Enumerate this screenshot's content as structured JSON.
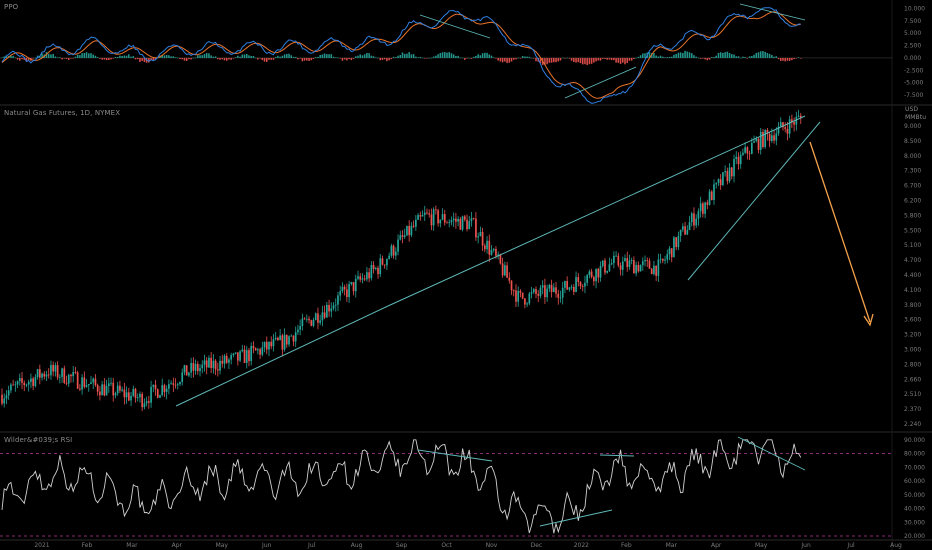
{
  "panes": {
    "ppo": {
      "title": "PPO",
      "ticks": [
        "10.000",
        "7.500",
        "5.000",
        "2.500",
        "0.000",
        "-2.500",
        "-5.000",
        "-7.500"
      ],
      "tick_values": [
        10,
        7.5,
        5,
        2.5,
        0,
        -2.5,
        -5,
        -7.5
      ]
    },
    "price": {
      "title": "Natural Gas Futures, 1D, NYMEX",
      "currency": "USD",
      "unit": "MMBtu",
      "ticks": [
        "9.000",
        "8.500",
        "8.000",
        "7.300",
        "6.700",
        "6.200",
        "5.800",
        "5.500",
        "5.100",
        "4.700",
        "4.400",
        "4.100",
        "3.800",
        "3.600",
        "3.200",
        "3.000",
        "2.800",
        "2.660",
        "2.510",
        "2.370",
        "2.240"
      ]
    },
    "rsi": {
      "title": "Wilder&#039;s RSI",
      "ticks": [
        "90.000",
        "80.000",
        "70.000",
        "60.000",
        "50.000",
        "40.000",
        "30.000",
        "20.000"
      ],
      "tick_values": [
        90,
        80,
        70,
        60,
        50,
        40,
        30,
        20
      ]
    }
  },
  "time_axis": [
    "2021",
    "Feb",
    "Mar",
    "Apr",
    "May",
    "Jun",
    "Jul",
    "Aug",
    "Sep",
    "Oct",
    "Nov",
    "Dec",
    "2022",
    "Feb",
    "Mar",
    "Apr",
    "May",
    "Jun",
    "Jul",
    "Aug"
  ],
  "colors": {
    "background": "#000000",
    "up_candle": "#26a69a",
    "down_candle": "#ef5350",
    "trendline": "#5fb7b7",
    "projection_arrow": "#f7a14a",
    "ppo_line": "#2f7fe0",
    "ppo_signal": "#e8732a",
    "rsi_line": "#d0d0d0",
    "rsi_level_line": "#b33a9a",
    "pane_divider": "#2a2a2a"
  },
  "chart_data": [
    {
      "type": "line",
      "pane": "PPO",
      "title": "PPO",
      "x": [
        "2021-01",
        "2021-02",
        "2021-03",
        "2021-04",
        "2021-05",
        "2021-06",
        "2021-07",
        "2021-08",
        "2021-09",
        "2021-10",
        "2021-11",
        "2021-12",
        "2022-01",
        "2022-02",
        "2022-03",
        "2022-04",
        "2022-05",
        "2022-06"
      ],
      "series": [
        {
          "name": "",
          "values": [
            -0.5,
            1.2,
            3.0,
            0.5,
            1.8,
            2.0,
            2.2,
            2.6,
            3.0,
            7.2,
            9.0,
            3.0,
            -6.5,
            -9.0,
            2.5,
            5.0,
            10.0,
            7.0
          ]
        },
        {
          "name": "",
          "values": [
            -0.3,
            0.8,
            2.5,
            0.8,
            1.6,
            1.9,
            2.1,
            2.4,
            2.8,
            6.5,
            8.5,
            3.5,
            -5.5,
            -8.0,
            1.5,
            4.5,
            9.0,
            7.5
          ]
        }
      ],
      "ylim": [
        -8.5,
        10.5
      ],
      "grid": false
    },
    {
      "type": "line",
      "pane": "price",
      "title": "Natural Gas Futures, 1D, NYMEX",
      "x": [
        "2021-01",
        "2021-02",
        "2021-03",
        "2021-04",
        "2021-05",
        "2021-06",
        "2021-07",
        "2021-08",
        "2021-09",
        "2021-10",
        "2021-11",
        "2021-12",
        "2022-01",
        "2022-02",
        "2022-03",
        "2022-04",
        "2022-05",
        "2022-06"
      ],
      "series": [
        {
          "name": "",
          "values": [
            2.6,
            2.9,
            2.7,
            2.55,
            2.9,
            3.05,
            3.3,
            3.9,
            4.6,
            5.8,
            5.6,
            4.0,
            4.2,
            4.7,
            4.6,
            6.2,
            8.0,
            9.0
          ]
        }
      ],
      "ylim": [
        2.24,
        9.0
      ],
      "grid": false,
      "annotations": [
        "rising wedge trendlines",
        "projection arrow pointing down"
      ]
    },
    {
      "type": "line",
      "pane": "RSI",
      "title": "Wilder&#039;s RSI",
      "x": [
        "2021-01",
        "2021-02",
        "2021-03",
        "2021-04",
        "2021-05",
        "2021-06",
        "2021-07",
        "2021-08",
        "2021-09",
        "2021-10",
        "2021-11",
        "2021-12",
        "2022-01",
        "2022-02",
        "2022-03",
        "2022-04",
        "2022-05",
        "2022-06"
      ],
      "series": [
        {
          "name": "",
          "values": [
            45,
            65,
            60,
            40,
            58,
            62,
            60,
            65,
            72,
            80,
            70,
            35,
            35,
            70,
            60,
            75,
            88,
            70
          ]
        }
      ],
      "ylim": [
        20,
        92
      ],
      "reference_lines": [
        80,
        20
      ],
      "grid": false
    }
  ]
}
